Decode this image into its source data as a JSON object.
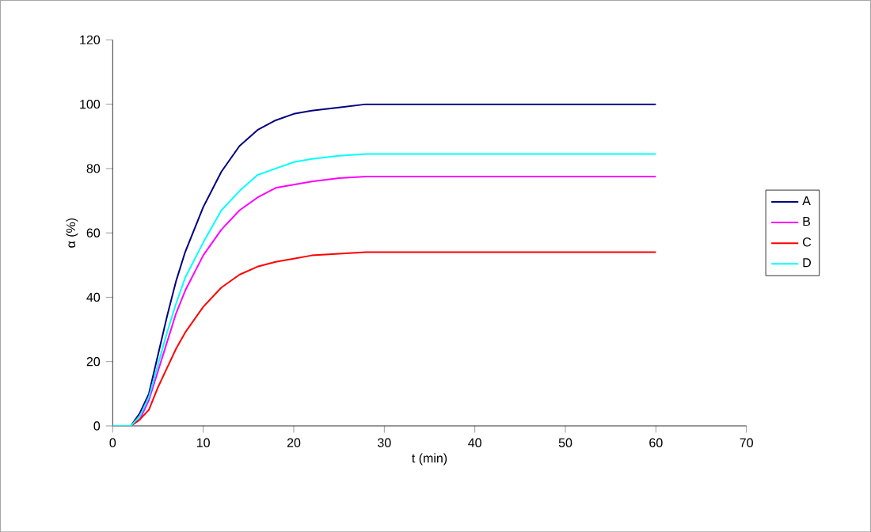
{
  "chart_data": {
    "type": "line",
    "xlabel": "t (min)",
    "ylabel": "α (%)",
    "xlim": [
      0,
      70
    ],
    "ylim": [
      0,
      120
    ],
    "xticks": [
      0,
      10,
      20,
      30,
      40,
      50,
      60,
      70
    ],
    "yticks": [
      0,
      20,
      40,
      60,
      80,
      100,
      120
    ],
    "legend": "right",
    "marker": "none",
    "x": [
      0,
      2,
      3,
      4,
      5,
      6,
      7,
      8,
      10,
      12,
      14,
      16,
      18,
      20,
      22,
      25,
      28,
      30,
      40,
      50,
      60
    ],
    "series": [
      {
        "name": "A",
        "color": "#000080",
        "values": [
          0,
          0,
          4,
          10,
          22,
          34,
          45,
          54,
          68,
          79,
          87,
          92,
          95,
          97,
          98,
          99,
          100,
          100,
          100,
          100,
          100
        ]
      },
      {
        "name": "B",
        "color": "#ff00ff",
        "values": [
          0,
          0,
          2,
          8,
          17,
          26,
          35,
          42,
          53,
          61,
          67,
          71,
          74,
          75,
          76,
          77,
          77.5,
          77.5,
          77.5,
          77.5,
          77.5
        ]
      },
      {
        "name": "C",
        "color": "#ff0000",
        "values": [
          0,
          0,
          2,
          5,
          12,
          18,
          24,
          29,
          37,
          43,
          47,
          49.5,
          51,
          52,
          53,
          53.5,
          54,
          54,
          54,
          54,
          54
        ]
      },
      {
        "name": "D",
        "color": "#00ffff",
        "values": [
          0,
          0,
          3,
          9,
          19,
          29,
          38,
          46,
          57,
          67,
          73,
          78,
          80,
          82,
          83,
          84,
          84.5,
          84.5,
          84.5,
          84.5,
          84.5
        ]
      }
    ]
  }
}
